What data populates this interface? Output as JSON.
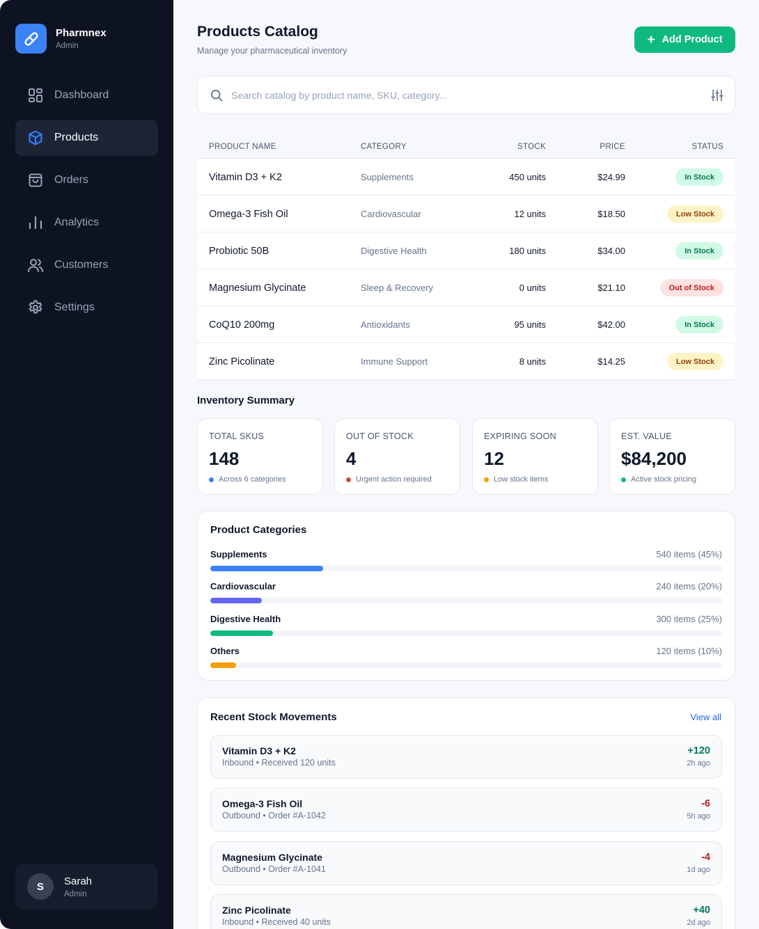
{
  "brand": {
    "name": "Pharmnex",
    "role": "Admin"
  },
  "nav": [
    {
      "label": "Dashboard",
      "icon": "dashboard-icon"
    },
    {
      "label": "Products",
      "icon": "cube-icon",
      "active": true
    },
    {
      "label": "Orders",
      "icon": "shopping-bag-icon"
    },
    {
      "label": "Analytics",
      "icon": "bar-chart-icon"
    },
    {
      "label": "Customers",
      "icon": "users-icon"
    },
    {
      "label": "Settings",
      "icon": "gear-icon"
    }
  ],
  "user": {
    "initial": "S",
    "name": "Sarah",
    "role": "Admin"
  },
  "header": {
    "title": "Products Catalog",
    "subtitle": "Manage your pharmaceutical inventory",
    "add_label": "Add Product"
  },
  "search": {
    "placeholder": "Search catalog by product name, SKU, category...",
    "value": ""
  },
  "table": {
    "columns": [
      "PRODUCT NAME",
      "CATEGORY",
      "STOCK",
      "PRICE",
      "STATUS"
    ],
    "rows": [
      {
        "name": "Vitamin D3 + K2",
        "category": "Supplements",
        "stock": "450 units",
        "price": "$24.99",
        "status": "In Stock",
        "status_type": "in"
      },
      {
        "name": "Omega-3 Fish Oil",
        "category": "Cardiovascular",
        "stock": "12 units",
        "price": "$18.50",
        "status": "Low Stock",
        "status_type": "low"
      },
      {
        "name": "Probiotic 50B",
        "category": "Digestive Health",
        "stock": "180 units",
        "price": "$34.00",
        "status": "In Stock",
        "status_type": "in"
      },
      {
        "name": "Magnesium Glycinate",
        "category": "Sleep & Recovery",
        "stock": "0 units",
        "price": "$21.10",
        "status": "Out of Stock",
        "status_type": "out"
      },
      {
        "name": "CoQ10 200mg",
        "category": "Antioxidants",
        "stock": "95 units",
        "price": "$42.00",
        "status": "In Stock",
        "status_type": "in"
      },
      {
        "name": "Zinc Picolinate",
        "category": "Immune Support",
        "stock": "8 units",
        "price": "$14.25",
        "status": "Low Stock",
        "status_type": "low"
      }
    ]
  },
  "summary": {
    "title": "Inventory Summary",
    "stats": [
      {
        "label": "TOTAL SKUS",
        "value": "148",
        "note": "Across 6 categories",
        "dot_color": "#3b82f6"
      },
      {
        "label": "OUT OF STOCK",
        "value": "4",
        "note": "Urgent action required",
        "dot_color": "#c2543f"
      },
      {
        "label": "EXPIRING SOON",
        "value": "12",
        "note": "Low stock items",
        "dot_color": "#f59e0b"
      },
      {
        "label": "EST. VALUE",
        "value": "$84,200",
        "note": "Active stock pricing",
        "dot_color": "#10b981"
      }
    ]
  },
  "categories": {
    "title": "Product Categories",
    "items": [
      {
        "name": "Supplements",
        "count": "540 items (45%)",
        "percent": 22,
        "color": "#3b82f6"
      },
      {
        "name": "Cardiovascular",
        "count": "240 items (20%)",
        "percent": 10,
        "color": "#6366f1"
      },
      {
        "name": "Digestive Health",
        "count": "300 items (25%)",
        "percent": 12.3,
        "color": "#10b981"
      },
      {
        "name": "Others",
        "count": "120 items (10%)",
        "percent": 5,
        "color": "#f59e0b"
      }
    ]
  },
  "movements": {
    "title": "Recent Stock Movements",
    "view_all": "View all",
    "items": [
      {
        "name": "Vitamin D3 + K2",
        "detail": "Inbound • Received 120 units",
        "qty": "+120",
        "time": "2h ago",
        "dir": "pos"
      },
      {
        "name": "Omega-3 Fish Oil",
        "detail": "Outbound • Order #A-1042",
        "qty": "-6",
        "time": "5h ago",
        "dir": "neg"
      },
      {
        "name": "Magnesium Glycinate",
        "detail": "Outbound • Order #A-1041",
        "qty": "-4",
        "time": "1d ago",
        "dir": "neg"
      },
      {
        "name": "Zinc Picolinate",
        "detail": "Inbound • Received 40 units",
        "qty": "+40",
        "time": "2d ago",
        "dir": "pos"
      }
    ]
  }
}
